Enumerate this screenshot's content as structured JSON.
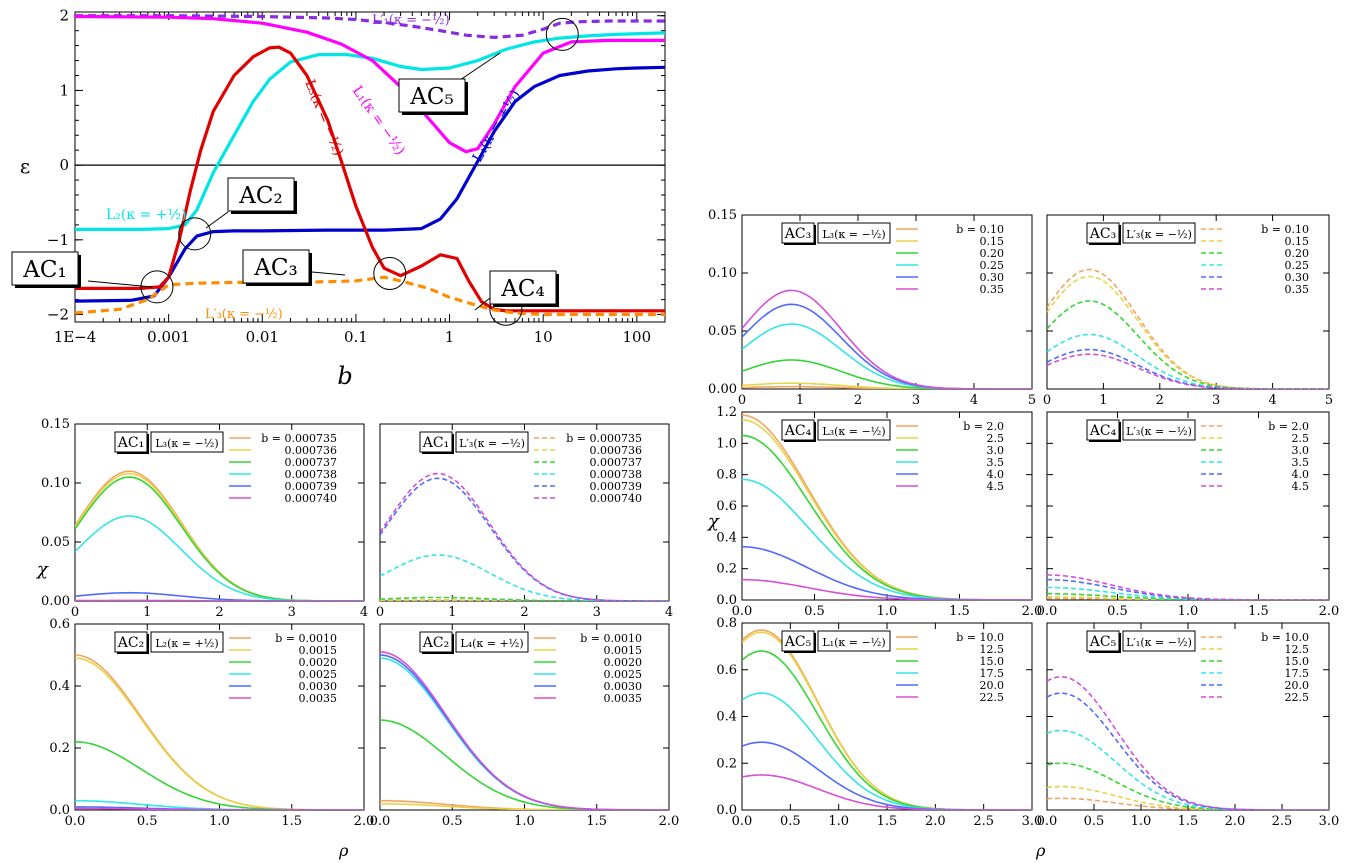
{
  "chart_data": [
    {
      "id": "energy",
      "type": "line",
      "xscale": "log",
      "xlabel": "b",
      "ylabel": "ε",
      "xlim": [
        0.0001,
        200
      ],
      "ylim": [
        -2.1,
        2.05
      ],
      "xticks": [
        {
          "v": 0.0001,
          "label": "1E−4"
        },
        {
          "v": 0.001,
          "label": "0.001"
        },
        {
          "v": 0.01,
          "label": "0.01"
        },
        {
          "v": 0.1,
          "label": "0.1"
        },
        {
          "v": 1,
          "label": "1"
        },
        {
          "v": 10,
          "label": "10"
        },
        {
          "v": 100,
          "label": "100"
        }
      ],
      "yticks": [
        {
          "v": -2,
          "label": "−2"
        },
        {
          "v": -1,
          "label": "−1"
        },
        {
          "v": 0,
          "label": "0"
        },
        {
          "v": 1,
          "label": "1"
        },
        {
          "v": 2,
          "label": "2"
        }
      ],
      "series": [
        {
          "name": "L'1(κ=−1/2)",
          "color": "#8a2be2",
          "dash": true,
          "x": [
            0.0001,
            0.001,
            0.01,
            0.05,
            0.1,
            0.2,
            0.4,
            0.8,
            1.5,
            3,
            6,
            10,
            15,
            25,
            50,
            100,
            200
          ],
          "y": [
            2.0,
            2.0,
            1.99,
            1.97,
            1.95,
            1.91,
            1.86,
            1.8,
            1.74,
            1.71,
            1.74,
            1.82,
            1.9,
            1.92,
            1.93,
            1.93,
            1.93
          ]
        },
        {
          "name": "L2(κ=+1/2)",
          "color": "#00e5e5",
          "dash": false,
          "x": [
            0.0001,
            0.0005,
            0.001,
            0.0015,
            0.002,
            0.003,
            0.005,
            0.008,
            0.012,
            0.02,
            0.04,
            0.08,
            0.15,
            0.3,
            0.5,
            1,
            2,
            4,
            8,
            15,
            30,
            60,
            100,
            200
          ],
          "y": [
            -0.86,
            -0.86,
            -0.85,
            -0.8,
            -0.6,
            -0.1,
            0.4,
            0.85,
            1.15,
            1.38,
            1.48,
            1.48,
            1.43,
            1.32,
            1.28,
            1.3,
            1.4,
            1.55,
            1.65,
            1.7,
            1.73,
            1.75,
            1.76,
            1.77
          ]
        },
        {
          "name": "L1(κ=−1/2)",
          "color": "#ff00ff",
          "dash": false,
          "x": [
            0.0001,
            0.001,
            0.003,
            0.01,
            0.03,
            0.07,
            0.15,
            0.3,
            0.6,
            1,
            1.5,
            2,
            3,
            5,
            10,
            20,
            50,
            100,
            200
          ],
          "y": [
            1.99,
            1.98,
            1.96,
            1.9,
            1.78,
            1.62,
            1.4,
            1.05,
            0.62,
            0.3,
            0.18,
            0.22,
            0.55,
            1.05,
            1.5,
            1.65,
            1.67,
            1.67,
            1.67
          ]
        },
        {
          "name": "L4(κ=+1/2)",
          "color": "#0000cc",
          "dash": false,
          "x": [
            0.0001,
            0.0004,
            0.0007,
            0.001,
            0.0015,
            0.002,
            0.003,
            0.005,
            0.01,
            0.05,
            0.2,
            0.5,
            0.8,
            1.2,
            2,
            3,
            5,
            8,
            15,
            30,
            60,
            100,
            200
          ],
          "y": [
            -1.82,
            -1.81,
            -1.75,
            -1.5,
            -1.12,
            -0.95,
            -0.89,
            -0.88,
            -0.88,
            -0.87,
            -0.87,
            -0.85,
            -0.72,
            -0.45,
            0.05,
            0.45,
            0.85,
            1.05,
            1.2,
            1.26,
            1.29,
            1.3,
            1.31
          ]
        },
        {
          "name": "L3(κ=−1/2)",
          "color": "#e00000",
          "dash": false,
          "x": [
            0.0001,
            0.0005,
            0.0008,
            0.001,
            0.0013,
            0.0017,
            0.0022,
            0.003,
            0.005,
            0.008,
            0.012,
            0.015,
            0.02,
            0.03,
            0.05,
            0.07,
            0.1,
            0.15,
            0.2,
            0.3,
            0.5,
            0.8,
            1.2,
            1.6,
            2.2,
            3,
            4,
            6,
            10,
            30,
            100,
            200
          ],
          "y": [
            -1.65,
            -1.65,
            -1.63,
            -1.5,
            -1.0,
            -0.35,
            0.2,
            0.72,
            1.2,
            1.45,
            1.57,
            1.58,
            1.5,
            1.2,
            0.6,
            0.05,
            -0.55,
            -1.1,
            -1.38,
            -1.48,
            -1.35,
            -1.2,
            -1.25,
            -1.55,
            -1.83,
            -1.93,
            -1.95,
            -1.95,
            -1.95,
            -1.95,
            -1.95,
            -1.95
          ]
        },
        {
          "name": "L'3(κ=−1/2)",
          "color": "#ff8c00",
          "dash": true,
          "x": [
            0.0001,
            0.0003,
            0.0006,
            0.001,
            0.002,
            0.005,
            0.02,
            0.05,
            0.1,
            0.2,
            0.3,
            0.6,
            1,
            2,
            3,
            5,
            10,
            30,
            100,
            200
          ],
          "y": [
            -1.98,
            -1.93,
            -1.8,
            -1.6,
            -1.58,
            -1.57,
            -1.57,
            -1.56,
            -1.55,
            -1.5,
            -1.55,
            -1.65,
            -1.77,
            -1.88,
            -1.94,
            -1.98,
            -2.0,
            -2.0,
            -2.0,
            -2.0
          ]
        }
      ],
      "annotations": [
        {
          "text": "AC₁",
          "x": 0.00075,
          "y": -1.63
        },
        {
          "text": "AC₂",
          "x": 0.0019,
          "y": -0.92
        },
        {
          "text": "AC₃",
          "x": 0.23,
          "y": -1.45
        },
        {
          "text": "AC₄",
          "x": 4.0,
          "y": -1.93
        },
        {
          "text": "AC₅",
          "x": 16,
          "y": 1.75
        }
      ],
      "curve_labels": [
        {
          "text": "L′₁(κ = −½)",
          "color": "#8a2be2"
        },
        {
          "text": "L₂(κ = +½)",
          "color": "#00e5e5"
        },
        {
          "text": "L₃(κ = −½)",
          "color": "#e00000"
        },
        {
          "text": "L₁(κ = −½)",
          "color": "#ff00ff"
        },
        {
          "text": "L₄(κ = +½)",
          "color": "#0000cc"
        },
        {
          "text": "L′₃(κ = −½)",
          "color": "#ff8c00"
        }
      ]
    },
    {
      "id": "ac1-l3",
      "type": "line",
      "xlim": [
        0,
        4
      ],
      "ylim": [
        0,
        0.15
      ],
      "ac": "AC₁",
      "state": "L₃(κ = −½)",
      "dash": false,
      "xticks": [
        "0",
        "1",
        "2",
        "3",
        "4"
      ],
      "yticks": [
        "0.00",
        "0.05",
        "0.10",
        "0.15"
      ],
      "legend_prefix": "b = ",
      "legend": [
        "0.000735",
        "0.000736",
        "0.000737",
        "0.000738",
        "0.000739",
        "0.000740"
      ],
      "peaks": [
        0.11,
        0.108,
        0.105,
        0.072,
        0.007,
        0.0005
      ],
      "peak_x": 0.75
    },
    {
      "id": "ac1-l3p",
      "type": "line",
      "xlim": [
        0,
        4
      ],
      "ylim": [
        0,
        0.15
      ],
      "ac": "AC₁",
      "state": "L′₃(κ = −½)",
      "dash": true,
      "xticks": [
        "0",
        "1",
        "2",
        "3",
        "4"
      ],
      "yticks": [],
      "legend_prefix": "b = ",
      "legend": [
        "0.000735",
        "0.000736",
        "0.000737",
        "0.000738",
        "0.000739",
        "0.000740"
      ],
      "peaks": [
        0.0005,
        0.001,
        0.003,
        0.039,
        0.104,
        0.108
      ],
      "peak_x": 0.8
    },
    {
      "id": "ac2-l2",
      "type": "line",
      "xlim": [
        0,
        2
      ],
      "ylim": [
        0,
        0.6
      ],
      "ac": "AC₂",
      "state": "L₂(κ = +½)",
      "dash": false,
      "xticks": [
        "0.0",
        "0.5",
        "1.0",
        "1.5",
        "2.0"
      ],
      "yticks": [
        "0.0",
        "0.2",
        "0.4",
        "0.6"
      ],
      "legend_prefix": "b = ",
      "legend": [
        "0.0010",
        "0.0015",
        "0.0020",
        "0.0025",
        "0.0030",
        "0.0035"
      ],
      "peaks": [
        0.5,
        0.49,
        0.22,
        0.03,
        0.01,
        0.005
      ],
      "peak_x": 0.0
    },
    {
      "id": "ac2-l4",
      "type": "line",
      "xlim": [
        0,
        2
      ],
      "ylim": [
        0,
        0.6
      ],
      "ac": "AC₂",
      "state": "L₄(κ = +½)",
      "dash": false,
      "xticks": [
        "0.0",
        "0.5",
        "1.0",
        "1.5",
        "2.0"
      ],
      "yticks": [],
      "legend_prefix": "b = ",
      "legend": [
        "0.0010",
        "0.0015",
        "0.0020",
        "0.0025",
        "0.0030",
        "0.0035"
      ],
      "peaks": [
        0.03,
        0.02,
        0.29,
        0.49,
        0.5,
        0.51
      ],
      "peak_x": 0.0
    },
    {
      "id": "ac3-l3",
      "type": "line",
      "xlim": [
        0,
        5
      ],
      "ylim": [
        0,
        0.15
      ],
      "ac": "AC₃",
      "state": "L₃(κ = −½)",
      "dash": false,
      "xticks": [
        "0",
        "1",
        "2",
        "3",
        "4",
        "5"
      ],
      "yticks": [
        "0.00",
        "0.05",
        "0.10",
        "0.15"
      ],
      "legend_prefix": "b = ",
      "legend": [
        "0.10",
        "0.15",
        "0.20",
        "0.25",
        "0.30",
        "0.35"
      ],
      "peaks": [
        0.002,
        0.005,
        0.025,
        0.056,
        0.073,
        0.085
      ],
      "peak_x": 0.85
    },
    {
      "id": "ac3-l3p",
      "type": "line",
      "xlim": [
        0,
        5
      ],
      "ylim": [
        0,
        0.15
      ],
      "ac": "AC₃",
      "state": "L′₃(κ = −½)",
      "dash": true,
      "xticks": [
        "0",
        "1",
        "2",
        "3",
        "4",
        "5"
      ],
      "yticks": [],
      "legend_prefix": "b = ",
      "legend": [
        "0.10",
        "0.15",
        "0.20",
        "0.25",
        "0.30",
        "0.35"
      ],
      "peaks": [
        0.103,
        0.097,
        0.076,
        0.047,
        0.034,
        0.03
      ],
      "peak_x": 0.75
    },
    {
      "id": "ac4-l3",
      "type": "line",
      "xlim": [
        0,
        2
      ],
      "ylim": [
        0,
        1.2
      ],
      "ac": "AC₄",
      "state": "L₃(κ = −½)",
      "dash": false,
      "xticks": [
        "0.0",
        "0.5",
        "1.0",
        "1.5",
        "2.0"
      ],
      "yticks": [
        "0.0",
        "0.2",
        "0.4",
        "0.6",
        "0.8",
        "1.0",
        "1.2"
      ],
      "legend_prefix": "b = ",
      "legend": [
        "2.0",
        "2.5",
        "3.0",
        "3.5",
        "4.0",
        "4.5"
      ],
      "peaks": [
        1.18,
        1.15,
        1.05,
        0.77,
        0.34,
        0.13
      ],
      "peak_x": 0.0
    },
    {
      "id": "ac4-l3p",
      "type": "line",
      "xlim": [
        0,
        2
      ],
      "ylim": [
        0,
        1.2
      ],
      "ac": "AC₄",
      "state": "L′₃(κ = −½)",
      "dash": true,
      "xticks": [
        "0.0",
        "0.5",
        "1.0",
        "1.5",
        "2.0"
      ],
      "yticks": [],
      "legend_prefix": "b = ",
      "legend": [
        "2.0",
        "2.5",
        "3.0",
        "3.5",
        "4.0",
        "4.5"
      ],
      "peaks": [
        0.01,
        0.02,
        0.04,
        0.08,
        0.13,
        0.16
      ],
      "peak_x": 0.0
    },
    {
      "id": "ac5-l1",
      "type": "line",
      "xlim": [
        0,
        3
      ],
      "ylim": [
        0,
        0.8
      ],
      "ac": "AC₅",
      "state": "L₁(κ = −½)",
      "dash": false,
      "xticks": [
        "0.0",
        "0.5",
        "1.0",
        "1.5",
        "2.0",
        "2.5",
        "3.0"
      ],
      "yticks": [
        "0.0",
        "0.2",
        "0.4",
        "0.6",
        "0.8"
      ],
      "legend_prefix": "b = ",
      "legend": [
        "10.0",
        "12.5",
        "15.0",
        "17.5",
        "20.0",
        "22.5"
      ],
      "peaks": [
        0.77,
        0.76,
        0.68,
        0.5,
        0.29,
        0.15
      ],
      "peak_x": 0.2
    },
    {
      "id": "ac5-l1p",
      "type": "line",
      "xlim": [
        0,
        3
      ],
      "ylim": [
        0,
        0.8
      ],
      "ac": "AC₅",
      "state": "L′₁(κ = −½)",
      "dash": true,
      "xticks": [
        "0.0",
        "0.5",
        "1.0",
        "1.5",
        "2.0",
        "2.5",
        "3.0"
      ],
      "yticks": [],
      "legend_prefix": "b = ",
      "legend": [
        "10.0",
        "12.5",
        "15.0",
        "17.5",
        "20.0",
        "22.5"
      ],
      "peaks": [
        0.05,
        0.1,
        0.2,
        0.34,
        0.5,
        0.57
      ],
      "peak_x": 0.15
    }
  ],
  "palette": [
    "#f4a460",
    "#e8d34a",
    "#33d633",
    "#33e5e5",
    "#4f6bff",
    "#d64fd6"
  ],
  "left_ylabel": "χ",
  "right_ylabel": "χ",
  "left_xlabel": "ρ",
  "right_xlabel": "ρ"
}
